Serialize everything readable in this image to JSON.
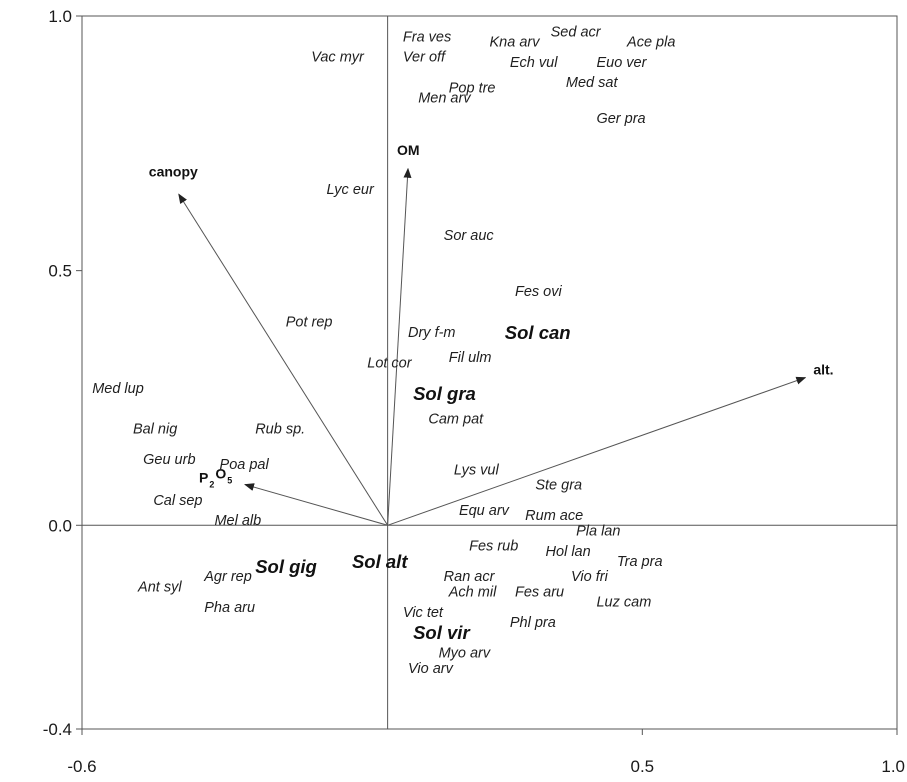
{
  "chart_data": {
    "type": "scatter",
    "title": "",
    "xlabel": "",
    "ylabel": "",
    "xlim": [
      -0.6,
      1.0
    ],
    "ylim": [
      -0.4,
      1.0
    ],
    "x_ticks": [
      {
        "value": -0.6,
        "label": "-0.6"
      },
      {
        "value": 0.5,
        "label": "0.5"
      },
      {
        "value": 1.0,
        "label": "1.0"
      }
    ],
    "y_ticks": [
      {
        "value": 1.0,
        "label": "1.0"
      },
      {
        "value": 0.5,
        "label": "0.5"
      },
      {
        "value": 0.0,
        "label": "0.0"
      },
      {
        "value": -0.4,
        "label": "-0.4"
      }
    ],
    "grid": false,
    "colors": {
      "axis": "#555555",
      "arrow": "#555555",
      "text": "#1f1f1f"
    },
    "environment_vectors": [
      {
        "name": "canopy",
        "x": -0.41,
        "y": 0.65
      },
      {
        "name": "OM",
        "x": 0.04,
        "y": 0.7
      },
      {
        "name": "alt.",
        "x": 0.82,
        "y": 0.29
      },
      {
        "name": "P",
        "subscript_a": "2",
        "name_b": "O",
        "subscript_b": "5",
        "x": -0.28,
        "y": 0.08
      }
    ],
    "groups": [
      {
        "name": "Sol can",
        "x": 0.23,
        "y": 0.38
      },
      {
        "name": "Sol gra",
        "x": 0.05,
        "y": 0.26
      },
      {
        "name": "Sol gig",
        "x": -0.26,
        "y": -0.08
      },
      {
        "name": "Sol alt",
        "x": -0.07,
        "y": -0.07
      },
      {
        "name": "Sol vir",
        "x": 0.05,
        "y": -0.21
      }
    ],
    "species": [
      {
        "name": "Vac myr",
        "x": -0.15,
        "y": 0.92
      },
      {
        "name": "Fra ves",
        "x": 0.03,
        "y": 0.96
      },
      {
        "name": "Ver off",
        "x": 0.03,
        "y": 0.92
      },
      {
        "name": "Kna arv",
        "x": 0.2,
        "y": 0.95
      },
      {
        "name": "Sed acr",
        "x": 0.32,
        "y": 0.97
      },
      {
        "name": "Ace pla",
        "x": 0.47,
        "y": 0.95
      },
      {
        "name": "Ech vul",
        "x": 0.24,
        "y": 0.91
      },
      {
        "name": "Euo ver",
        "x": 0.41,
        "y": 0.91
      },
      {
        "name": "Med sat",
        "x": 0.35,
        "y": 0.87
      },
      {
        "name": "Pop tre",
        "x": 0.12,
        "y": 0.86
      },
      {
        "name": "Men arv",
        "x": 0.06,
        "y": 0.84
      },
      {
        "name": "Ger pra",
        "x": 0.41,
        "y": 0.8
      },
      {
        "name": "Lyc eur",
        "x": -0.12,
        "y": 0.66
      },
      {
        "name": "Sor auc",
        "x": 0.11,
        "y": 0.57
      },
      {
        "name": "Fes ovi",
        "x": 0.25,
        "y": 0.46
      },
      {
        "name": "Pot rep",
        "x": -0.2,
        "y": 0.4
      },
      {
        "name": "Dry f-m",
        "x": 0.04,
        "y": 0.38
      },
      {
        "name": "Fil ulm",
        "x": 0.12,
        "y": 0.33
      },
      {
        "name": "Lot cor",
        "x": -0.04,
        "y": 0.32
      },
      {
        "name": "Med lup",
        "x": -0.58,
        "y": 0.27
      },
      {
        "name": "Cam pat",
        "x": 0.08,
        "y": 0.21
      },
      {
        "name": "Bal nig",
        "x": -0.5,
        "y": 0.19
      },
      {
        "name": "Rub sp.",
        "x": -0.26,
        "y": 0.19
      },
      {
        "name": "Geu urb",
        "x": -0.48,
        "y": 0.13
      },
      {
        "name": "Poa pal",
        "x": -0.33,
        "y": 0.12
      },
      {
        "name": "Lys vul",
        "x": 0.13,
        "y": 0.11
      },
      {
        "name": "Ste gra",
        "x": 0.29,
        "y": 0.08
      },
      {
        "name": "Cal sep",
        "x": -0.46,
        "y": 0.05
      },
      {
        "name": "Mel alb",
        "x": -0.34,
        "y": 0.01
      },
      {
        "name": "Equ arv",
        "x": 0.14,
        "y": 0.03
      },
      {
        "name": "Rum ace",
        "x": 0.27,
        "y": 0.02
      },
      {
        "name": "Pla lan",
        "x": 0.37,
        "y": -0.01
      },
      {
        "name": "Fes rub",
        "x": 0.16,
        "y": -0.04
      },
      {
        "name": "Hol lan",
        "x": 0.31,
        "y": -0.05
      },
      {
        "name": "Tra pra",
        "x": 0.45,
        "y": -0.07
      },
      {
        "name": "Ran acr",
        "x": 0.11,
        "y": -0.1
      },
      {
        "name": "Vio fri",
        "x": 0.36,
        "y": -0.1
      },
      {
        "name": "Agr rep",
        "x": -0.36,
        "y": -0.1
      },
      {
        "name": "Ant syl",
        "x": -0.49,
        "y": -0.12
      },
      {
        "name": "Ach mil",
        "x": 0.12,
        "y": -0.13
      },
      {
        "name": "Fes aru",
        "x": 0.25,
        "y": -0.13
      },
      {
        "name": "Luz cam",
        "x": 0.41,
        "y": -0.15
      },
      {
        "name": "Pha aru",
        "x": -0.36,
        "y": -0.16
      },
      {
        "name": "Vic tet",
        "x": 0.03,
        "y": -0.17
      },
      {
        "name": "Phl pra",
        "x": 0.24,
        "y": -0.19
      },
      {
        "name": "Myo arv",
        "x": 0.1,
        "y": -0.25
      },
      {
        "name": "Vio arv",
        "x": 0.04,
        "y": -0.28
      }
    ]
  }
}
